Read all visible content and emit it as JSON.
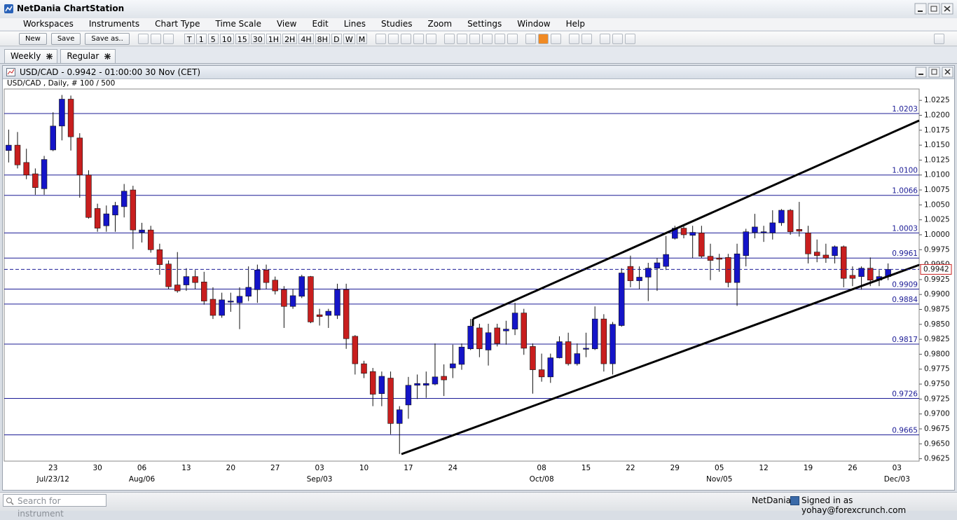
{
  "app": {
    "title": "NetDania ChartStation",
    "menu": [
      "Workspaces",
      "Instruments",
      "Chart Type",
      "Time Scale",
      "View",
      "Edit",
      "Lines",
      "Studies",
      "Zoom",
      "Settings",
      "Window",
      "Help"
    ],
    "buttons": [
      "New",
      "Save",
      "Save as.."
    ],
    "timeframes": [
      "T",
      "1",
      "5",
      "10",
      "15",
      "30",
      "1H",
      "2H",
      "4H",
      "8H",
      "D",
      "W",
      "M"
    ],
    "tabs": [
      "Weekly",
      "Regular"
    ],
    "search_placeholder": "Search for instrument",
    "brand": "NetDania",
    "signed_in": "Signed in as yohay@forexcrunch.com"
  },
  "chart_window": {
    "title": "USD/CAD - 0.9942 - 01:00:00  30 Nov (CET)"
  },
  "chart_data": {
    "type": "candlestick",
    "subtitle": "USD/CAD , Daily, # 100 / 500",
    "categories": [
      null,
      null,
      null,
      null,
      null,
      "23",
      null,
      null,
      null,
      null,
      "30",
      null,
      null,
      null,
      null,
      "06",
      null,
      null,
      null,
      null,
      "13",
      null,
      null,
      null,
      null,
      "20",
      null,
      null,
      null,
      null,
      "27",
      null,
      null,
      null,
      null,
      "03",
      null,
      null,
      null,
      null,
      "10",
      null,
      null,
      null,
      null,
      "17",
      null,
      null,
      null,
      null,
      "24",
      null,
      null,
      null,
      null,
      null,
      null,
      null,
      null,
      null,
      "08",
      null,
      null,
      null,
      null,
      "15",
      null,
      null,
      null,
      null,
      "22",
      null,
      null,
      null,
      null,
      "29",
      null,
      null,
      null,
      null,
      "05",
      null,
      null,
      null,
      null,
      "12",
      null,
      null,
      null,
      null,
      "19",
      null,
      null,
      null,
      null,
      "26",
      null,
      null,
      null,
      null,
      "03"
    ],
    "period_labels": [
      null,
      null,
      null,
      null,
      null,
      "Jul/23/12",
      null,
      null,
      null,
      null,
      null,
      null,
      null,
      null,
      null,
      "Aug/06",
      null,
      null,
      null,
      null,
      null,
      null,
      null,
      null,
      null,
      null,
      null,
      null,
      null,
      null,
      null,
      null,
      null,
      null,
      null,
      "Sep/03",
      null,
      null,
      null,
      null,
      null,
      null,
      null,
      null,
      null,
      null,
      null,
      null,
      null,
      null,
      null,
      null,
      null,
      null,
      null,
      null,
      null,
      null,
      null,
      null,
      "Oct/08",
      null,
      null,
      null,
      null,
      null,
      null,
      null,
      null,
      null,
      null,
      null,
      null,
      null,
      null,
      null,
      null,
      null,
      null,
      null,
      "Nov/05",
      null,
      null,
      null,
      null,
      null,
      null,
      null,
      null,
      null,
      null,
      null,
      null,
      null,
      null,
      null,
      null,
      null,
      null,
      null,
      "Dec/03"
    ],
    "open": [
      1.0141,
      1.015,
      1.0121,
      1.0102,
      1.0077,
      1.0142,
      1.0182,
      1.0227,
      1.0162,
      1.01,
      1.0044,
      1.0015,
      1.0033,
      1.0047,
      1.0075,
      1.0004,
      1.0008,
      0.9975,
      0.9951,
      0.9916,
      0.9916,
      0.993,
      0.9921,
      0.9892,
      0.9865,
      0.9888,
      0.9886,
      0.9897,
      0.9908,
      0.9941,
      0.9924,
      0.9908,
      0.988,
      0.9897,
      0.993,
      0.9866,
      0.9865,
      0.9865,
      0.9908,
      0.983,
      0.9784,
      0.9771,
      0.9734,
      0.976,
      0.9684,
      0.9715,
      0.9748,
      0.9748,
      0.975,
      0.9763,
      0.9777,
      0.9783,
      0.9809,
      0.9844,
      0.9807,
      0.9844,
      0.9839,
      0.9842,
      0.9869,
      0.9813,
      0.9774,
      0.9762,
      0.9794,
      0.9821,
      0.9784,
      0.9809,
      0.9809,
      0.9859,
      0.9784,
      0.9848,
      0.9947,
      0.9923,
      0.9929,
      0.9944,
      0.9947,
      0.9994,
      1.0011,
      0.9999,
      1.0003,
      0.9964,
      0.9961,
      0.9962,
      0.992,
      0.9965,
      1.0004,
      1.0004,
      1.0003,
      1.002,
      1.0041,
      1.0009,
      1.0003,
      0.9971,
      0.9966,
      0.9965,
      0.998,
      0.9932,
      0.993,
      0.9944,
      0.9924,
      0.993,
      null
    ],
    "high": [
      1.0176,
      1.0172,
      1.0144,
      1.0111,
      1.0132,
      1.0205,
      1.0234,
      1.0233,
      1.017,
      1.0108,
      1.0052,
      1.0049,
      1.0055,
      1.0085,
      1.0082,
      1.002,
      1.0015,
      0.9985,
      0.9957,
      0.9971,
      0.9944,
      0.9941,
      0.9938,
      0.9912,
      0.9903,
      0.9903,
      0.9912,
      0.9947,
      0.995,
      0.995,
      0.993,
      0.9914,
      0.9909,
      0.9933,
      0.9931,
      0.9876,
      0.9876,
      0.9918,
      0.9918,
      0.9832,
      0.9789,
      0.9777,
      0.9771,
      0.9771,
      0.9713,
      0.9762,
      0.9766,
      0.9771,
      0.9818,
      0.9783,
      0.9816,
      0.9818,
      0.9859,
      0.9851,
      0.9851,
      0.9851,
      0.9856,
      0.9886,
      0.9876,
      0.9818,
      0.9801,
      0.9801,
      0.983,
      0.9836,
      0.9818,
      0.9836,
      0.988,
      0.9867,
      0.9854,
      0.9944,
      0.9965,
      0.9947,
      0.9953,
      0.9961,
      0.9998,
      1.0015,
      1.0017,
      1.0015,
      1.0015,
      0.9985,
      0.9968,
      0.9968,
      0.9985,
      1.001,
      1.0035,
      1.0015,
      1.0041,
      1.0043,
      1.0043,
      1.0055,
      1.0015,
      0.9992,
      0.9985,
      0.9982,
      0.9982,
      0.9947,
      0.9947,
      0.9962,
      0.9941,
      0.9952,
      null
    ],
    "low": [
      1.0121,
      1.0111,
      1.0093,
      1.0067,
      1.0067,
      1.014,
      1.0158,
      1.0141,
      1.0062,
      1.0027,
      1.0005,
      1.0005,
      1.0005,
      1.0029,
      0.9976,
      0.9987,
      0.997,
      0.9933,
      0.9909,
      0.9903,
      0.9906,
      0.9909,
      0.9883,
      0.9859,
      0.9861,
      0.9871,
      0.9842,
      0.9889,
      0.9886,
      0.9909,
      0.99,
      0.9844,
      0.9876,
      0.9894,
      0.9852,
      0.9848,
      0.9844,
      0.9859,
      0.9809,
      0.9766,
      0.976,
      0.9713,
      0.9713,
      0.9666,
      0.9633,
      0.9692,
      0.9725,
      0.9727,
      0.9748,
      0.973,
      0.976,
      0.9774,
      0.9807,
      0.9795,
      0.9781,
      0.9813,
      0.9816,
      0.9832,
      0.9799,
      0.9734,
      0.9754,
      0.9752,
      0.9793,
      0.9781,
      0.9781,
      0.9795,
      0.9807,
      0.9771,
      0.9766,
      0.9846,
      0.9912,
      0.9909,
      0.9889,
      0.9906,
      0.9941,
      0.9992,
      0.9994,
      0.9961,
      0.9961,
      0.9924,
      0.9938,
      0.9912,
      0.9881,
      0.9947,
      0.9994,
      0.9988,
      0.9992,
      1.0015,
      1.0,
      0.9997,
      0.9952,
      0.9954,
      0.9953,
      0.9952,
      0.9912,
      0.9914,
      0.9908,
      0.9914,
      0.9914,
      0.9924,
      null
    ],
    "close": [
      1.015,
      1.0117,
      1.01,
      1.0079,
      1.0126,
      1.0182,
      1.0227,
      1.0164,
      1.01,
      1.0029,
      1.0011,
      1.0035,
      1.0049,
      1.0073,
      1.0008,
      1.0008,
      0.9975,
      0.995,
      0.9913,
      0.9906,
      0.993,
      0.992,
      0.9889,
      0.9865,
      0.9891,
      0.9889,
      0.9897,
      0.9912,
      0.9941,
      0.992,
      0.9906,
      0.988,
      0.9898,
      0.993,
      0.9854,
      0.9863,
      0.9872,
      0.9908,
      0.9826,
      0.9784,
      0.9768,
      0.9733,
      0.9763,
      0.9684,
      0.9707,
      0.9748,
      0.9751,
      0.9751,
      0.9762,
      0.9757,
      0.9784,
      0.9812,
      0.9847,
      0.9809,
      0.9836,
      0.9818,
      0.9842,
      0.9869,
      0.981,
      0.9774,
      0.9762,
      0.9794,
      0.9821,
      0.9784,
      0.9801,
      0.981,
      0.9859,
      0.9784,
      0.985,
      0.9936,
      0.9923,
      0.9929,
      0.9944,
      0.9953,
      0.9967,
      1.0011,
      1.0,
      1.0004,
      0.9964,
      0.9957,
      0.9959,
      0.992,
      0.9968,
      1.0005,
      1.0013,
      1.0005,
      1.002,
      1.0041,
      1.0005,
      1.0006,
      0.9968,
      0.9965,
      0.9961,
      0.998,
      0.9927,
      0.9927,
      0.9944,
      0.9924,
      0.993,
      0.9942,
      null
    ],
    "up_color": "#1414c8",
    "down_color": "#c81e1e",
    "ylim": [
      0.9621,
      1.0244
    ],
    "yticks": [
      0.9625,
      {
        "value": 0.965,
        "label": "0.9650"
      },
      0.9675,
      {
        "value": 0.97,
        "label": "0.9700"
      },
      0.9725,
      {
        "value": 0.975,
        "label": "0.9750"
      },
      0.9775,
      {
        "value": 0.98,
        "label": "0.9800"
      },
      0.9825,
      {
        "value": 0.985,
        "label": "0.9850"
      },
      0.9875,
      {
        "value": 0.99,
        "label": "0.9900"
      },
      0.9925,
      {
        "value": 0.995,
        "label": "0.9950"
      },
      0.9975,
      {
        "value": 1,
        "label": "1.0000"
      },
      1.0025,
      {
        "value": 1.005,
        "label": "1.0050"
      },
      1.0075,
      {
        "value": 1.01,
        "label": "1.0100"
      },
      1.0125,
      {
        "value": 1.015,
        "label": "1.0150"
      },
      1.0175,
      {
        "value": 1.02,
        "label": "1.0200"
      },
      1.0225
    ],
    "levels": [
      1.0203,
      {
        "value": 1.01,
        "label": "1.0100"
      },
      1.0066,
      1.0003,
      0.9961,
      0.9909,
      0.9884,
      0.9817,
      0.9726,
      0.9665
    ],
    "level_color": "#1c1c96",
    "last_price": 0.9942,
    "last_price_color": "#c81e1e"
  }
}
